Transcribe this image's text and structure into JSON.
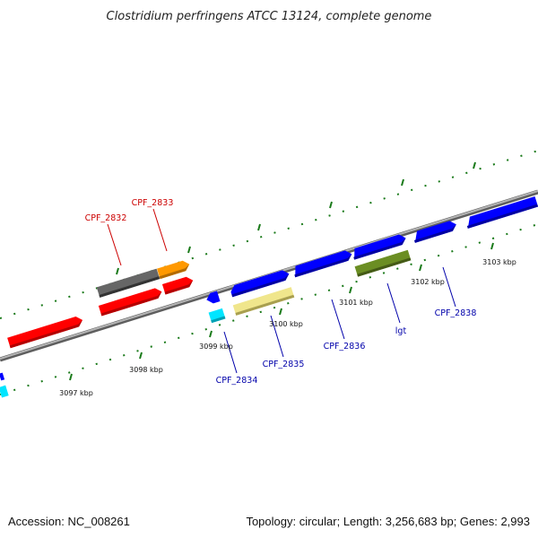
{
  "title": "Clostridium perfringens ATCC 13124, complete genome",
  "footer": {
    "accession": "Accession: NC_008261",
    "summary": "Topology: circular; Length: 3,256,683 bp; Genes: 2,993"
  },
  "colors": {
    "backbone": "#8a8a8a",
    "tick": "#1a7a1a",
    "label_red": "#cc0000",
    "label_blue": "#0000aa",
    "cds_red": "#ff0000",
    "cds_blue": "#0000ff",
    "cds_gray": "#666666",
    "cds_orange": "#ff9900",
    "cds_cyan": "#00e5ff",
    "cds_khaki": "#f0e68c",
    "cds_olive": "#6b8e23"
  },
  "scale_labels": [
    "3097 kbp",
    "3098 kbp",
    "3099 kbp",
    "3100 kbp",
    "3101 kbp",
    "3102 kbp",
    "3103 kbp"
  ],
  "gene_labels": [
    "CPF_2832",
    "CPF_2833",
    "CPF_2834",
    "CPF_2835",
    "CPF_2836",
    "lgt",
    "CPF_2838"
  ]
}
